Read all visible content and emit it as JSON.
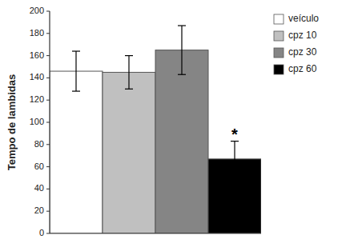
{
  "chart_data": {
    "type": "bar",
    "categories": [
      "veículo",
      "cpz 10",
      "cpz 30",
      "cpz 60"
    ],
    "values": [
      146,
      145,
      165,
      67
    ],
    "errors": [
      18,
      15,
      22,
      16
    ],
    "colors": [
      "#ffffff",
      "#c0c0c0",
      "#858585",
      "#000000"
    ],
    "ylabel": "Tempo de lambidas",
    "ylim": [
      0,
      200
    ],
    "yticks": [
      0,
      20,
      40,
      60,
      80,
      100,
      120,
      140,
      160,
      180,
      200
    ],
    "grid": false,
    "legend": "right",
    "tick_labels": "y",
    "annotations": [
      {
        "text": "*",
        "category": "cpz 60"
      }
    ]
  }
}
